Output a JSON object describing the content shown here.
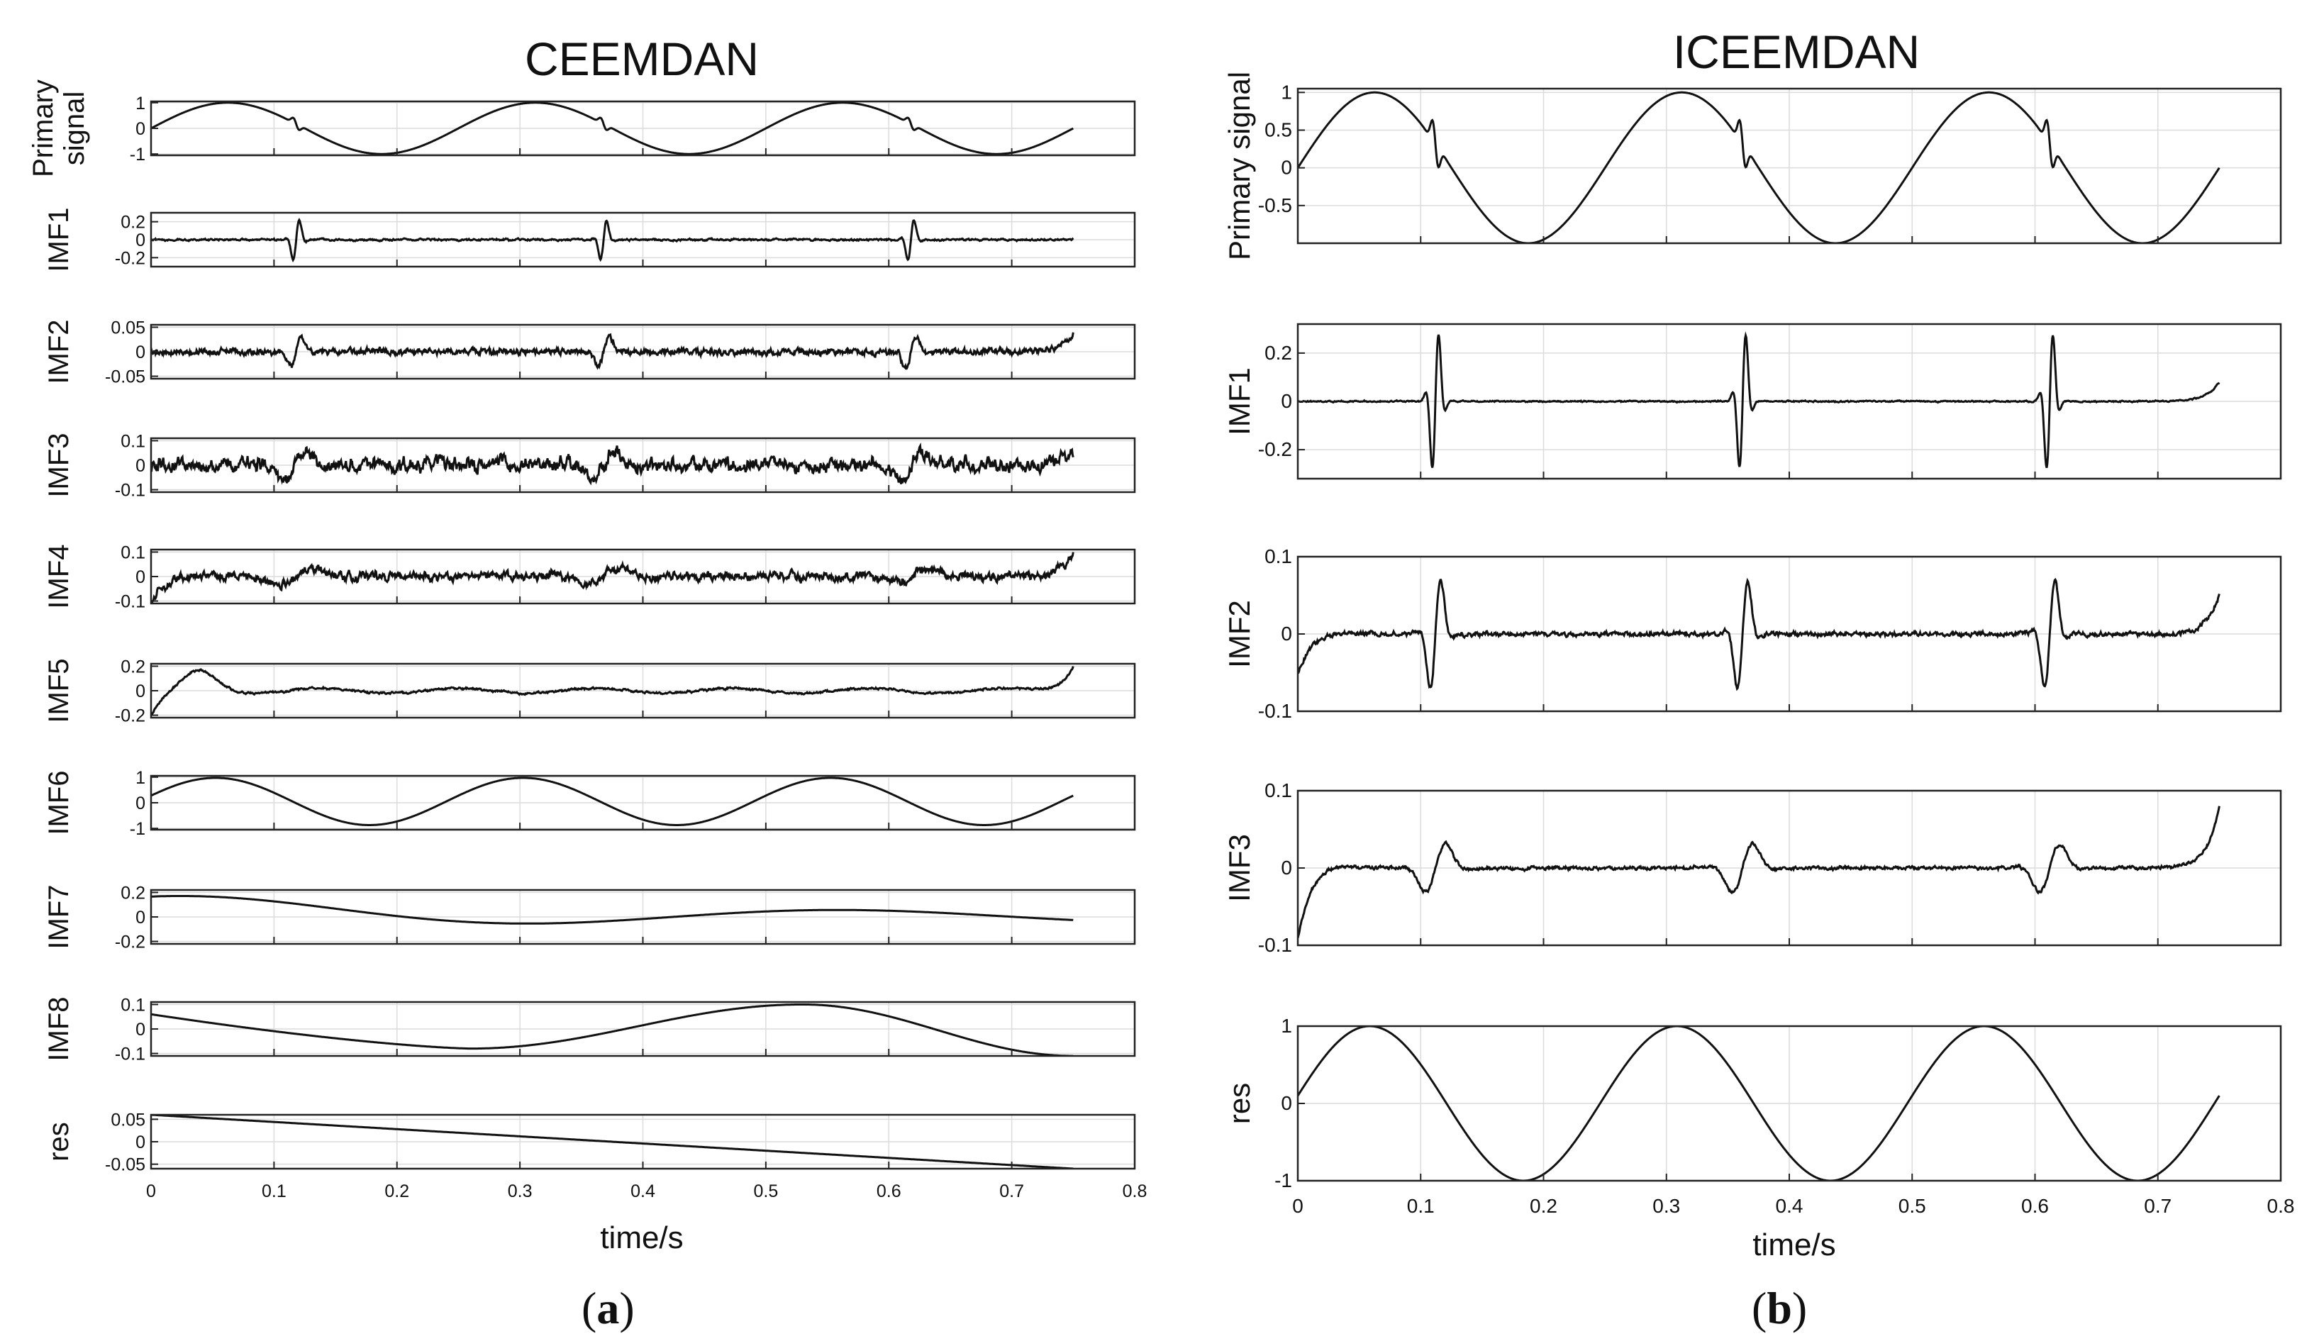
{
  "chart_data": [
    {
      "type": "line",
      "panel": "a",
      "title": "CEEMDAN",
      "caption_prefix": "(",
      "caption_letter": "a",
      "caption_suffix": ")",
      "xlabel": "time/s",
      "xlim": [
        0,
        0.8
      ],
      "xticks": [
        0,
        0.1,
        0.2,
        0.3,
        0.4,
        0.5,
        0.6,
        0.7,
        0.8
      ],
      "xtick_labels": [
        "0",
        "0.1",
        "0.2",
        "0.3",
        "0.4",
        "0.5",
        "0.6",
        "0.7",
        "0.8"
      ],
      "x_end": 0.75,
      "grid": true,
      "subplots": [
        {
          "ylabel_lines": [
            "Primary",
            "signal"
          ],
          "ylim": [
            -1.05,
            1.05
          ],
          "yticks": [
            -1,
            0,
            1
          ],
          "ytick_labels": [
            "-1",
            "0",
            "1"
          ],
          "signal": {
            "kind": "sine",
            "amp": 1.0,
            "freq": 4,
            "phase": 0,
            "spike_times": [
              0.118,
              0.368,
              0.618
            ],
            "spike_amp": 0.28,
            "noise": 0
          }
        },
        {
          "ylabel_lines": [
            "IMF1"
          ],
          "ylim": [
            -0.3,
            0.3
          ],
          "yticks": [
            -0.2,
            0,
            0.2
          ],
          "ytick_labels": [
            "-0.2",
            "0",
            "0.2"
          ],
          "signal": {
            "kind": "burst",
            "spike_times": [
              0.118,
              0.368,
              0.618
            ],
            "spike_amp": 0.3,
            "spike_freq": 75,
            "spike_width": 0.0035,
            "noise": 0.015
          }
        },
        {
          "ylabel_lines": [
            "IMF2"
          ],
          "ylim": [
            -0.055,
            0.055
          ],
          "yticks": [
            -0.05,
            0,
            0.05
          ],
          "ytick_labels": [
            "-0.05",
            "0",
            "0.05"
          ],
          "signal": {
            "kind": "burst",
            "spike_times": [
              0.118,
              0.368,
              0.618
            ],
            "spike_amp": 0.045,
            "spike_freq": 40,
            "spike_width": 0.006,
            "noise": 0.009,
            "end_amp": 0.04
          }
        },
        {
          "ylabel_lines": [
            "IMF3"
          ],
          "ylim": [
            -0.11,
            0.11
          ],
          "yticks": [
            -0.1,
            0,
            0.1
          ],
          "ytick_labels": [
            "-0.1",
            "0",
            "0.1"
          ],
          "signal": {
            "kind": "burst",
            "spike_times": [
              0.118,
              0.368,
              0.618
            ],
            "spike_amp": 0.08,
            "spike_freq": 22,
            "spike_width": 0.012,
            "noise": 0.04,
            "end_amp": 0.04
          }
        },
        {
          "ylabel_lines": [
            "IMF4"
          ],
          "ylim": [
            -0.11,
            0.11
          ],
          "yticks": [
            -0.1,
            0,
            0.1
          ],
          "ytick_labels": [
            "-0.1",
            "0",
            "0.1"
          ],
          "signal": {
            "kind": "burst",
            "spike_times": [
              0.118,
              0.368,
              0.618
            ],
            "spike_amp": 0.04,
            "spike_freq": 14,
            "spike_width": 0.02,
            "noise": 0.025,
            "start_amp": -0.1,
            "end_amp": 0.09
          }
        },
        {
          "ylabel_lines": [
            "IMF5"
          ],
          "ylim": [
            -0.22,
            0.22
          ],
          "yticks": [
            -0.2,
            0,
            0.2
          ],
          "ytick_labels": [
            "-0.2",
            "0",
            "0.2"
          ],
          "signal": {
            "kind": "smooth",
            "noise": 0.012,
            "start_amp": -0.2,
            "bump": 0.15,
            "end_amp": 0.22
          }
        },
        {
          "ylabel_lines": [
            "IMF6"
          ],
          "ylim": [
            -1.05,
            1.05
          ],
          "yticks": [
            -1,
            0,
            1
          ],
          "ytick_labels": [
            "-1",
            "0",
            "1"
          ],
          "signal": {
            "kind": "sine",
            "amp": 0.92,
            "freq": 4,
            "phase": 0.25,
            "noise": 0,
            "offset": 0.05
          }
        },
        {
          "ylabel_lines": [
            "IMF7"
          ],
          "ylim": [
            -0.22,
            0.22
          ],
          "yticks": [
            -0.2,
            0,
            0.2
          ],
          "ytick_labels": [
            "-0.2",
            "0",
            "0.2"
          ],
          "signal": {
            "kind": "imf7"
          }
        },
        {
          "ylabel_lines": [
            "IMF8"
          ],
          "ylim": [
            -0.11,
            0.11
          ],
          "yticks": [
            -0.1,
            0,
            0.1
          ],
          "ytick_labels": [
            "-0.1",
            "0",
            "0.1"
          ],
          "signal": {
            "kind": "imf8"
          }
        },
        {
          "ylabel_lines": [
            "res"
          ],
          "ylim": [
            -0.06,
            0.06
          ],
          "yticks": [
            -0.05,
            0,
            0.05
          ],
          "ytick_labels": [
            "-0.05",
            "0",
            "0.05"
          ],
          "signal": {
            "kind": "linear",
            "start": 0.06,
            "end": -0.06
          }
        }
      ]
    },
    {
      "type": "line",
      "panel": "b",
      "title": "ICEEMDAN",
      "caption_prefix": "(",
      "caption_letter": "b",
      "caption_suffix": ")",
      "xlabel": "time/s",
      "xlim": [
        0,
        0.8
      ],
      "xticks": [
        0,
        0.1,
        0.2,
        0.3,
        0.4,
        0.5,
        0.6,
        0.7,
        0.8
      ],
      "xtick_labels": [
        "0",
        "0.1",
        "0.2",
        "0.3",
        "0.4",
        "0.5",
        "0.6",
        "0.7",
        "0.8"
      ],
      "x_end": 0.75,
      "grid": true,
      "subplots": [
        {
          "ylabel_lines": [
            "Primary signal"
          ],
          "ylim": [
            -1.0,
            1.05
          ],
          "yticks": [
            -0.5,
            0,
            0.5,
            1
          ],
          "ytick_labels": [
            "-0.5",
            "0",
            "0.5",
            "1"
          ],
          "signal": {
            "kind": "sine",
            "amp": 1.0,
            "freq": 4,
            "phase": 0,
            "spike_times": [
              0.112,
              0.362,
              0.612
            ],
            "spike_amp": 0.4,
            "noise": 0
          }
        },
        {
          "ylabel_lines": [
            "IMF1"
          ],
          "ylim": [
            -0.32,
            0.32
          ],
          "yticks": [
            -0.2,
            0,
            0.2
          ],
          "ytick_labels": [
            "-0.2",
            "0",
            "0.2"
          ],
          "signal": {
            "kind": "burst",
            "spike_times": [
              0.112,
              0.362,
              0.612
            ],
            "spike_amp": 0.35,
            "spike_freq": 80,
            "spike_width": 0.004,
            "noise": 0.004,
            "end_amp": 0.08
          }
        },
        {
          "ylabel_lines": [
            "IMF2"
          ],
          "ylim": [
            -0.1,
            0.1
          ],
          "yticks": [
            -0.1,
            0,
            0.1
          ],
          "ytick_labels": [
            "-0.1",
            "0",
            "0.1"
          ],
          "signal": {
            "kind": "burst",
            "spike_times": [
              0.112,
              0.362,
              0.612
            ],
            "spike_amp": 0.095,
            "spike_freq": 45,
            "spike_width": 0.006,
            "noise": 0.004,
            "start_amp": -0.05,
            "end_amp": 0.05
          }
        },
        {
          "ylabel_lines": [
            "IMF3"
          ],
          "ylim": [
            -0.1,
            0.1
          ],
          "yticks": [
            -0.1,
            0,
            0.1
          ],
          "ytick_labels": [
            "-0.1",
            "0",
            "0.1"
          ],
          "signal": {
            "kind": "burst",
            "spike_times": [
              0.112,
              0.362,
              0.612
            ],
            "spike_amp": 0.045,
            "spike_freq": 22,
            "spike_width": 0.011,
            "noise": 0.003,
            "start_amp": -0.09,
            "end_amp": 0.08
          }
        },
        {
          "ylabel_lines": [
            "res"
          ],
          "ylim": [
            -1.0,
            1.0
          ],
          "yticks": [
            -1,
            0,
            1
          ],
          "ytick_labels": [
            "-1",
            "0",
            "1"
          ],
          "signal": {
            "kind": "sine",
            "amp": 1.0,
            "freq": 4,
            "phase": 0.1,
            "noise": 0,
            "offset": 0
          }
        }
      ]
    }
  ]
}
